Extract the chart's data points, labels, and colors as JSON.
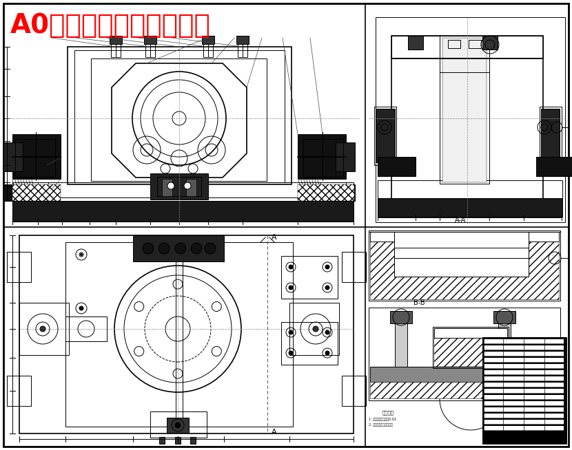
{
  "title": "A0粗铣下平面夹具装配图",
  "title_color": "#FF0000",
  "title_fontsize": 28,
  "bg_color": "#FFFFFF",
  "line_color": "#000000",
  "fig_width": 8.3,
  "fig_height": 6.54,
  "dpi": 100,
  "section_AA_label": "A-A",
  "section_BB_label": "B-B"
}
